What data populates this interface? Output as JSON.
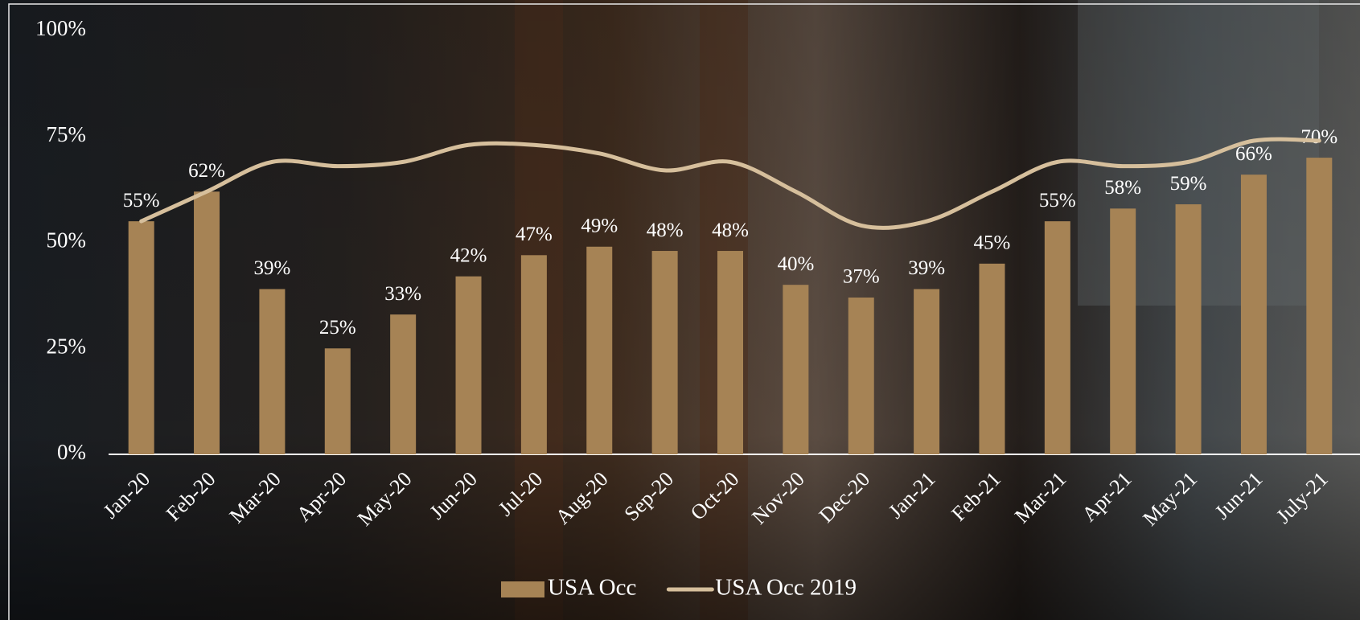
{
  "chart_data": {
    "type": "bar",
    "categories": [
      "Jan-20",
      "Feb-20",
      "Mar-20",
      "Apr-20",
      "May-20",
      "Jun-20",
      "Jul-20",
      "Aug-20",
      "Sep-20",
      "Oct-20",
      "Nov-20",
      "Dec-20",
      "Jan-21",
      "Feb-21",
      "Mar-21",
      "Apr-21",
      "May-21",
      "Jun-21",
      "July-21"
    ],
    "series": [
      {
        "name": "USA Occ",
        "type": "bar",
        "color": "#a68355",
        "values": [
          55,
          62,
          39,
          25,
          33,
          42,
          47,
          49,
          48,
          48,
          40,
          37,
          39,
          45,
          55,
          58,
          59,
          66,
          70
        ],
        "value_labels": [
          "55%",
          "62%",
          "39%",
          "25%",
          "33%",
          "42%",
          "47%",
          "49%",
          "48%",
          "48%",
          "40%",
          "37%",
          "39%",
          "45%",
          "55%",
          "58%",
          "59%",
          "66%",
          "70%"
        ]
      },
      {
        "name": "USA Occ 2019",
        "type": "line",
        "color": "#d6bf9c",
        "values": [
          55,
          62,
          69,
          68,
          69,
          73,
          73,
          71,
          67,
          69,
          62,
          54,
          55,
          62,
          69,
          68,
          69,
          74,
          74
        ]
      }
    ],
    "ylim": [
      0,
      100
    ],
    "yticks": [
      {
        "value": 0,
        "label": "0%"
      },
      {
        "value": 25,
        "label": "25%"
      },
      {
        "value": 50,
        "label": "50%"
      },
      {
        "value": 75,
        "label": "75%"
      },
      {
        "value": 100,
        "label": "100%"
      }
    ],
    "grid": false,
    "legend": "bottom"
  }
}
